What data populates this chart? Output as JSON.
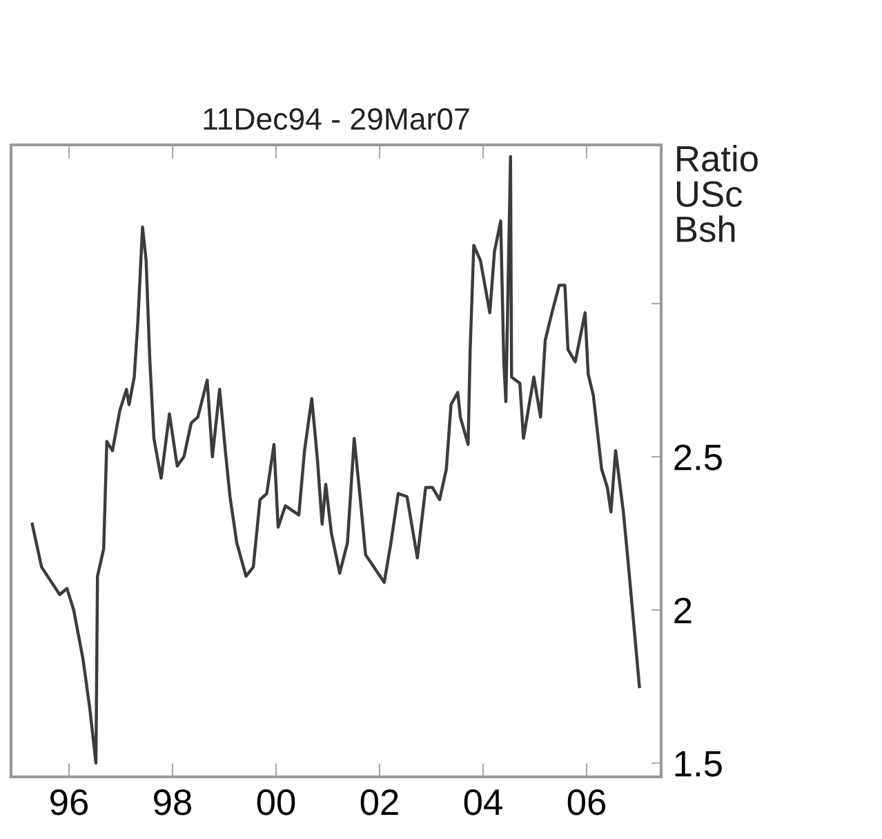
{
  "chart_data": {
    "type": "line",
    "title": "11Dec94 - 29Mar07",
    "ylabel": "Ratio\nUSc\nBsh",
    "x": [
      1995.29,
      1995.47,
      1995.82,
      1995.96,
      1996.09,
      1996.27,
      1996.4,
      1996.52,
      1996.55,
      1996.67,
      1996.73,
      1996.84,
      1996.98,
      1997.11,
      1997.16,
      1997.26,
      1997.33,
      1997.42,
      1997.49,
      1997.56,
      1997.64,
      1997.78,
      1997.94,
      1998.09,
      1998.22,
      1998.36,
      1998.49,
      1998.67,
      1998.77,
      1998.91,
      1999.02,
      1999.11,
      1999.24,
      1999.42,
      1999.56,
      1999.69,
      1999.82,
      1999.96,
      2000.04,
      2000.18,
      2000.44,
      2000.55,
      2000.69,
      2000.8,
      2000.89,
      2000.96,
      2001.07,
      2001.23,
      2001.38,
      2001.51,
      2001.64,
      2001.73,
      2002.09,
      2002.22,
      2002.36,
      2002.53,
      2002.73,
      2002.89,
      2003.02,
      2003.16,
      2003.29,
      2003.38,
      2003.51,
      2003.56,
      2003.71,
      2003.75,
      2003.82,
      2003.95,
      2004.13,
      2004.22,
      2004.34,
      2004.4,
      2004.44,
      2004.53,
      2004.55,
      2004.71,
      2004.78,
      2004.98,
      2005.11,
      2005.2,
      2005.33,
      2005.47,
      2005.58,
      2005.64,
      2005.78,
      2005.97,
      2006.03,
      2006.13,
      2006.29,
      2006.4,
      2006.47,
      2006.56,
      2006.71,
      2006.8,
      2007.02
    ],
    "series": [
      {
        "color": "#3c3c3c",
        "values": [
          2.28,
          2.14,
          2.05,
          2.07,
          2.0,
          1.84,
          1.68,
          1.5,
          2.11,
          2.2,
          2.55,
          2.52,
          2.65,
          2.72,
          2.67,
          2.76,
          2.94,
          3.25,
          3.14,
          2.82,
          2.56,
          2.43,
          2.64,
          2.47,
          2.5,
          2.61,
          2.63,
          2.75,
          2.5,
          2.72,
          2.52,
          2.37,
          2.22,
          2.11,
          2.14,
          2.36,
          2.38,
          2.54,
          2.27,
          2.34,
          2.31,
          2.52,
          2.69,
          2.49,
          2.28,
          2.41,
          2.25,
          2.12,
          2.22,
          2.56,
          2.34,
          2.18,
          2.09,
          2.22,
          2.38,
          2.37,
          2.17,
          2.4,
          2.4,
          2.36,
          2.46,
          2.67,
          2.71,
          2.63,
          2.54,
          2.85,
          3.19,
          3.14,
          2.97,
          3.17,
          3.27,
          2.81,
          2.68,
          3.48,
          2.76,
          2.74,
          2.56,
          2.76,
          2.63,
          2.88,
          2.97,
          3.06,
          3.06,
          2.85,
          2.81,
          2.97,
          2.77,
          2.7,
          2.46,
          2.4,
          2.32,
          2.52,
          2.32,
          2.16,
          1.75
        ]
      }
    ],
    "xlim": [
      1994.88,
      2007.44
    ],
    "xticks": [
      {
        "value": 1996,
        "label": "96"
      },
      {
        "value": 1998,
        "label": "98"
      },
      {
        "value": 2000,
        "label": "00"
      },
      {
        "value": 2002,
        "label": "02"
      },
      {
        "value": 2004,
        "label": "04"
      },
      {
        "value": 2006,
        "label": "06"
      }
    ],
    "ylim": [
      1.455,
      3.518
    ],
    "yticks": [
      1.5,
      2,
      2.5,
      {
        "value": 3,
        "label": null
      }
    ],
    "grid": false,
    "marker": "none",
    "line_style": "solid"
  }
}
